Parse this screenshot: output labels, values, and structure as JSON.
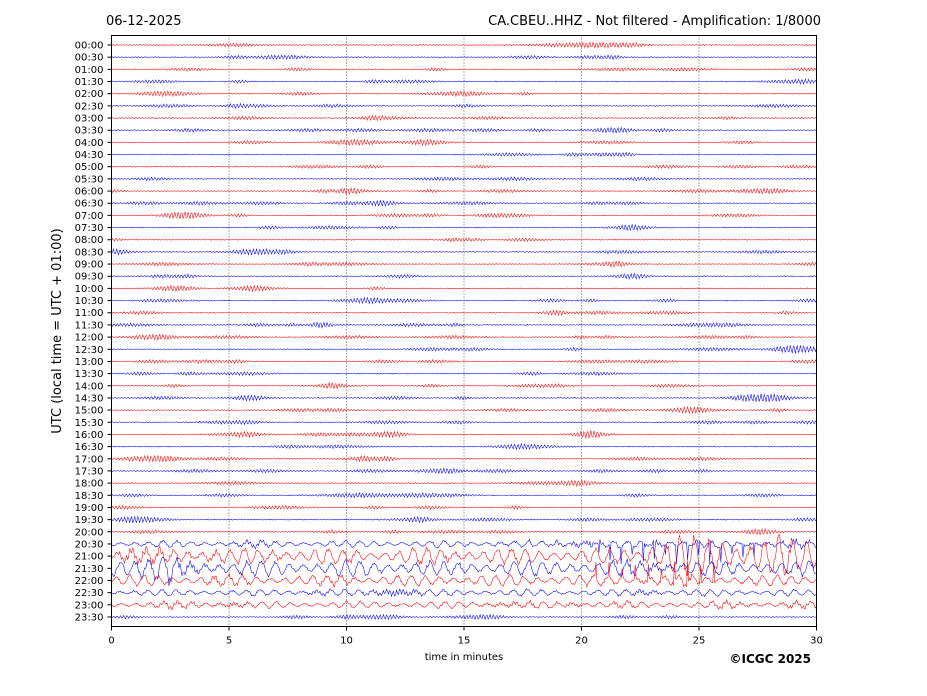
{
  "header": {
    "date": "06-12-2025",
    "title": "CA.CBEU..HHZ - Not filtered - Amplification: 1/8000"
  },
  "footer": {
    "copyright": "©ICGC 2025"
  },
  "chart_data": {
    "type": "line",
    "xlabel": "time in minutes",
    "ylabel": "UTC (local time = UTC + 01:00)",
    "xlim": [
      0,
      30
    ],
    "x_ticks": [
      "0",
      "5",
      "10",
      "15",
      "20",
      "25",
      "30"
    ],
    "x_tick_values": [
      0,
      5,
      10,
      15,
      20,
      25,
      30
    ],
    "grid": "vertical dotted",
    "trace_colors": [
      "#ff0000",
      "#0000ff"
    ],
    "rows": [
      "00:00",
      "00:30",
      "01:00",
      "01:30",
      "02:00",
      "02:30",
      "03:00",
      "03:30",
      "04:00",
      "04:30",
      "05:00",
      "05:30",
      "06:00",
      "06:30",
      "07:00",
      "07:30",
      "08:00",
      "08:30",
      "09:00",
      "09:30",
      "10:00",
      "10:30",
      "11:00",
      "11:30",
      "12:00",
      "12:30",
      "13:00",
      "13:30",
      "14:00",
      "14:30",
      "15:00",
      "15:30",
      "16:00",
      "16:30",
      "17:00",
      "17:30",
      "18:00",
      "18:30",
      "19:00",
      "19:30",
      "20:00",
      "20:30",
      "21:00",
      "21:30",
      "22:00",
      "22:30",
      "23:00",
      "23:30"
    ],
    "high_activity_rows": [
      "20:30",
      "21:00",
      "21:30",
      "22:00",
      "22:30",
      "23:00"
    ]
  }
}
